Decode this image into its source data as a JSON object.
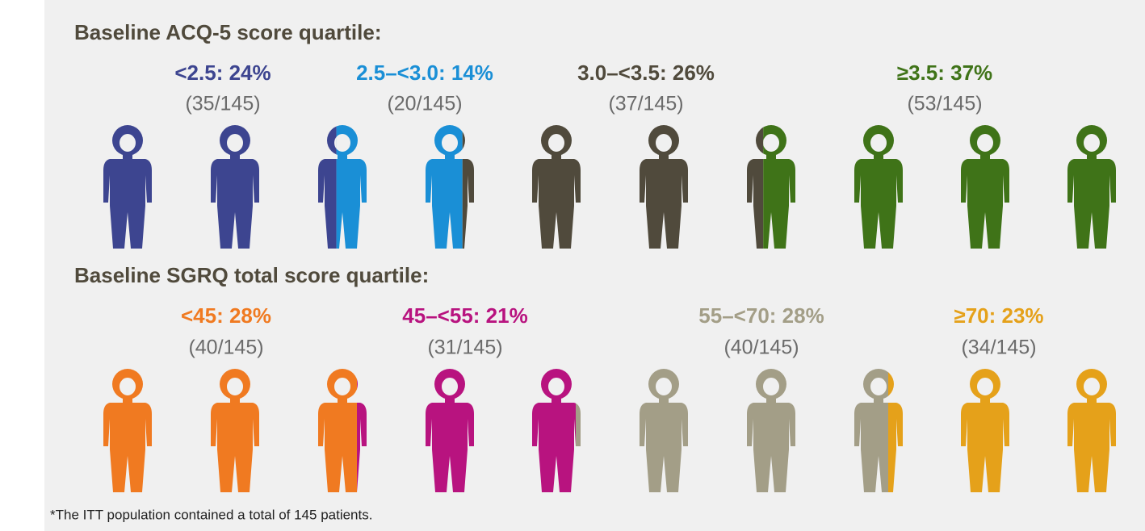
{
  "chart_data": [
    {
      "type": "pictogram",
      "title": "Baseline ACQ-5 score quartile:",
      "series": [
        {
          "name": "<2.5: 24%",
          "color": "#3d4590",
          "values": [
            24
          ],
          "count_label": "(35/145)"
        },
        {
          "name": "2.5–<3.0: 14%",
          "color": "#1a8fd6",
          "values": [
            14
          ],
          "count_label": "(20/145)"
        },
        {
          "name": "3.0–<3.5: 26%",
          "color": "#504a3c",
          "values": [
            26
          ],
          "count_label": "(37/145)"
        },
        {
          "name": "≥3.5: 37%",
          "color": "#3f7318",
          "values": [
            37
          ],
          "count_label": "(53/145)"
        }
      ]
    },
    {
      "type": "pictogram",
      "title": "Baseline SGRQ total score quartile:",
      "series": [
        {
          "name": "<45: 28%",
          "color": "#f07a21",
          "values": [
            28
          ],
          "count_label": "(40/145)"
        },
        {
          "name": "45–<55: 21%",
          "color": "#b8137f",
          "values": [
            21
          ],
          "count_label": "(31/145)"
        },
        {
          "name": "55–<70: 28%",
          "color": "#a39e87",
          "values": [
            28
          ],
          "count_label": "(40/145)"
        },
        {
          "name": "≥70: 23%",
          "color": "#e5a11a",
          "values": [
            23
          ],
          "count_label": "(34/145)"
        }
      ]
    }
  ],
  "footnote": "*The ITT population contained a total of 145 patients."
}
